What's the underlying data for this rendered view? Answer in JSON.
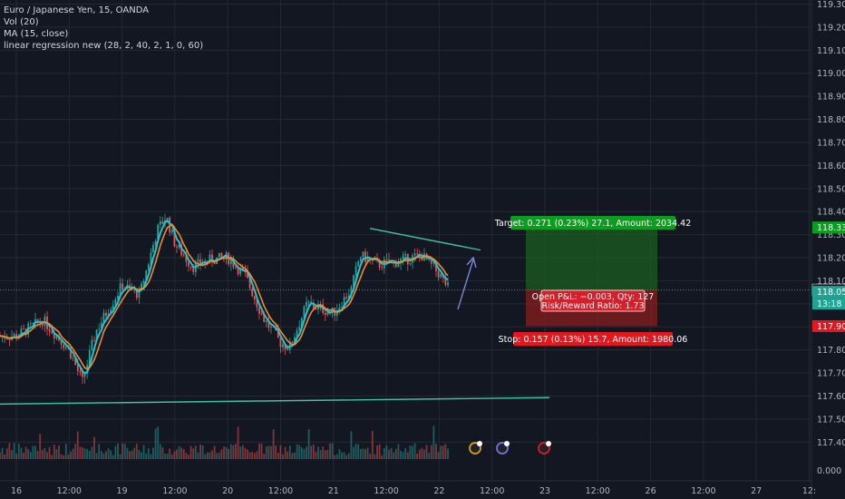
{
  "legend": {
    "symbol": "Euro / Japanese Yen, 15, OANDA",
    "volume": "Vol (20)",
    "ma": "MA (15, close)",
    "regression": "linear regression new (28, 2, 40, 2, 1, 0, 60)"
  },
  "colors": {
    "background": "#131722",
    "grid": "#242832",
    "up": "#26a69a",
    "down": "#ef5350",
    "ma_line": "#f28b26",
    "regression_line": "#1fc3d6",
    "trendline": "#3cc3a4",
    "target_fill": "#1b5e20",
    "stop_fill": "#7f1d1d",
    "target_label": "#0a9d1e",
    "stop_label": "#e5161d",
    "arrow": "#7b86d6"
  },
  "chart_data": {
    "type": "candlestick",
    "ylim": [
      117.38,
      119.32
    ],
    "y_ticks": [
      "119.300",
      "119.200",
      "119.100",
      "119.000",
      "118.900",
      "118.800",
      "118.700",
      "118.600",
      "118.500",
      "118.400",
      "118.300",
      "118.200",
      "118.100",
      "118.000",
      "117.900",
      "117.800",
      "117.700",
      "117.600",
      "117.500",
      "117.400"
    ],
    "x_ticks": [
      "16",
      "12:00",
      "19",
      "12:00",
      "20",
      "12:00",
      "21",
      "12:00",
      "22",
      "12:00",
      "23",
      "12:00",
      "26",
      "12:00",
      "27",
      "12:"
    ],
    "volume_axis_label": "0.000",
    "close_path": [
      [
        "16",
        117.86
      ],
      [
        "16 06:00",
        117.93
      ],
      [
        "16 12:00",
        117.8
      ],
      [
        "16 15:00",
        117.66
      ],
      [
        "16 18:00",
        117.88
      ],
      [
        "19 00:00",
        118.08
      ],
      [
        "19 04:00",
        118.04
      ],
      [
        "19 08:00",
        118.32
      ],
      [
        "19 10:00",
        118.38
      ],
      [
        "19 12:00",
        118.26
      ],
      [
        "19 16:00",
        118.16
      ],
      [
        "19 20:00",
        118.19
      ],
      [
        "20 00:00",
        118.2
      ],
      [
        "20 04:00",
        118.12
      ],
      [
        "20 08:00",
        117.94
      ],
      [
        "20 12:00",
        117.83
      ],
      [
        "20 14:00",
        117.81
      ],
      [
        "20 18:00",
        118.0
      ],
      [
        "21 00:00",
        117.96
      ],
      [
        "21 04:00",
        118.06
      ],
      [
        "21 06:00",
        118.21
      ],
      [
        "21 10:00",
        118.17
      ],
      [
        "21 14:00",
        118.18
      ],
      [
        "21 20:00",
        118.21
      ],
      [
        "22 00:00",
        118.13
      ],
      [
        "22 02:00",
        118.07
      ]
    ],
    "price_labels": [
      {
        "value": "118.331",
        "price": 118.331,
        "color": "#0a9d1e"
      },
      {
        "value": "118.060",
        "price": 118.06,
        "color": "#131722"
      },
      {
        "value": "118.057",
        "price": 118.052,
        "color": "#1fa392"
      },
      {
        "value": "13:18",
        "price": 118.001,
        "color": "#1fa392"
      },
      {
        "value": "117.903",
        "price": 117.903,
        "color": "#e5161d"
      }
    ],
    "long_position": {
      "entry": 118.06,
      "target_price": 118.331,
      "stop_price": 117.903,
      "target_text": "Target: 0.271 (0.23%) 27.1, Amount: 2034.42",
      "stop_text": "Stop: 0.157 (0.13%) 15.7, Amount: 1980.06",
      "pnl_text": "Open P&L: −0.003, Qty: 127",
      "ratio_text": "Risk/Reward Ratio: 1.73"
    },
    "support_line": {
      "from": 117.565,
      "to": 117.593
    },
    "resistance_line": {
      "from": 118.327,
      "to": 118.233
    }
  }
}
